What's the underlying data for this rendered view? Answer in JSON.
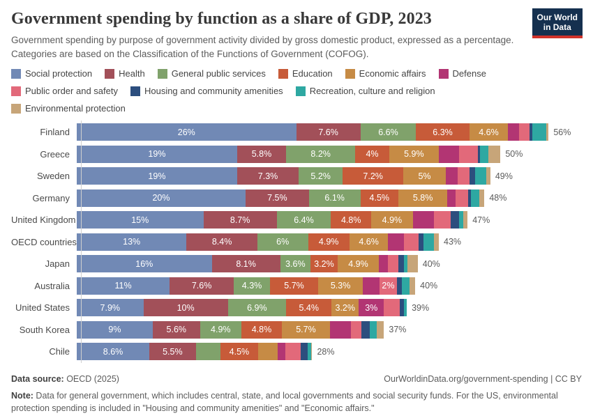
{
  "header": {
    "title": "Government spending by function as a share of GDP, 2023",
    "subtitle": "Government spending by purpose of government activity divided by gross domestic product, expressed as a percentage. Categories are based on the Classification of the Functions of Government (COFOG).",
    "logo": {
      "line1": "Our World",
      "line2": "in Data",
      "bg_color": "#15304f",
      "accent_color": "#d0322a"
    }
  },
  "chart_data": {
    "type": "bar",
    "stacked": true,
    "orientation": "horizontal",
    "unit": "%",
    "xlim": [
      0,
      56
    ],
    "grid": false,
    "legend_position": "top",
    "categories": [
      {
        "name": "Social protection",
        "color": "#7189B5"
      },
      {
        "name": "Health",
        "color": "#A25059"
      },
      {
        "name": "General public services",
        "color": "#80A26B"
      },
      {
        "name": "Education",
        "color": "#C75B39"
      },
      {
        "name": "Economic affairs",
        "color": "#C68B45"
      },
      {
        "name": "Defense",
        "color": "#B23573"
      },
      {
        "name": "Public order and safety",
        "color": "#E2697A"
      },
      {
        "name": "Housing and community amenities",
        "color": "#2C4E7E"
      },
      {
        "name": "Recreation, culture and religion",
        "color": "#2EA8A2"
      },
      {
        "name": "Environmental protection",
        "color": "#C7A579"
      }
    ],
    "rows": [
      {
        "country": "Finland",
        "values": [
          26,
          7.6,
          6.6,
          6.3,
          4.6,
          1.3,
          1.2,
          0.4,
          1.6,
          0.3
        ],
        "labels": [
          "26%",
          "7.6%",
          "6.6%",
          "6.3%",
          "4.6%",
          "",
          "",
          "",
          "",
          ""
        ],
        "total": "56%"
      },
      {
        "country": "Greece",
        "values": [
          19,
          5.8,
          8.2,
          4.0,
          5.9,
          2.4,
          2.2,
          0.3,
          1.0,
          1.4
        ],
        "labels": [
          "19%",
          "5.8%",
          "8.2%",
          "4%",
          "5.9%",
          "",
          "",
          "",
          "",
          ""
        ],
        "total": "50%"
      },
      {
        "country": "Sweden",
        "values": [
          19,
          7.3,
          5.2,
          7.2,
          5.0,
          1.4,
          1.4,
          0.7,
          1.3,
          0.5
        ],
        "labels": [
          "19%",
          "7.3%",
          "5.2%",
          "7.2%",
          "5%",
          "",
          "",
          "",
          "",
          ""
        ],
        "total": "49%"
      },
      {
        "country": "Germany",
        "values": [
          20,
          7.5,
          6.1,
          4.5,
          5.8,
          1.0,
          1.5,
          0.3,
          1.0,
          0.6
        ],
        "labels": [
          "20%",
          "7.5%",
          "6.1%",
          "4.5%",
          "5.8%",
          "",
          "",
          "",
          "",
          ""
        ],
        "total": "48%"
      },
      {
        "country": "United Kingdom",
        "values": [
          15,
          8.7,
          6.4,
          4.8,
          4.9,
          2.5,
          2.0,
          1.0,
          0.5,
          0.5
        ],
        "labels": [
          "15%",
          "8.7%",
          "6.4%",
          "4.8%",
          "4.9%",
          "",
          "",
          "",
          "",
          ""
        ],
        "total": "47%"
      },
      {
        "country": "OECD countries",
        "values": [
          13,
          8.4,
          6.0,
          4.9,
          4.6,
          1.9,
          1.7,
          0.6,
          1.2,
          0.6
        ],
        "labels": [
          "13%",
          "8.4%",
          "6%",
          "4.9%",
          "4.6%",
          "",
          "",
          "",
          "",
          ""
        ],
        "total": "43%"
      },
      {
        "country": "Japan",
        "values": [
          16,
          8.1,
          3.6,
          3.2,
          4.9,
          1.1,
          1.2,
          0.7,
          0.4,
          1.2
        ],
        "labels": [
          "16%",
          "8.1%",
          "3.6%",
          "3.2%",
          "4.9%",
          "",
          "",
          "",
          "",
          ""
        ],
        "total": "40%"
      },
      {
        "country": "Australia",
        "values": [
          11,
          7.6,
          4.3,
          5.7,
          5.3,
          2.0,
          2.0,
          0.6,
          0.9,
          0.7
        ],
        "labels": [
          "11%",
          "7.6%",
          "4.3%",
          "5.7%",
          "5.3%",
          "",
          "2%",
          "",
          "",
          ""
        ],
        "total": "40%"
      },
      {
        "country": "United States",
        "values": [
          7.9,
          10,
          6.9,
          5.4,
          3.2,
          3.0,
          1.9,
          0.5,
          0.3,
          0
        ],
        "labels": [
          "7.9%",
          "10%",
          "6.9%",
          "5.4%",
          "3.2%",
          "3%",
          "",
          "",
          "",
          ""
        ],
        "total": "39%"
      },
      {
        "country": "South Korea",
        "values": [
          9,
          5.6,
          4.9,
          4.8,
          5.7,
          2.5,
          1.2,
          1.0,
          0.8,
          0.9
        ],
        "labels": [
          "9%",
          "5.6%",
          "4.9%",
          "4.8%",
          "5.7%",
          "",
          "",
          "",
          "",
          ""
        ],
        "total": "37%"
      },
      {
        "country": "Chile",
        "values": [
          8.6,
          5.5,
          2.9,
          4.5,
          2.3,
          0.9,
          1.8,
          0.9,
          0.4,
          0.1
        ],
        "labels": [
          "8.6%",
          "5.5%",
          "",
          "4.5%",
          "",
          "",
          "",
          "",
          "",
          ""
        ],
        "total": "28%"
      }
    ]
  },
  "footer": {
    "source_label": "Data source:",
    "source_value": " OECD (2025)",
    "link": "OurWorldinData.org/government-spending | CC BY",
    "note_label": "Note:",
    "note_value": " Data for general government, which includes central, state, and local governments and social security funds. For the US, environmental protection spending is included in \"Housing and community amenities\" and \"Economic affairs.\""
  }
}
